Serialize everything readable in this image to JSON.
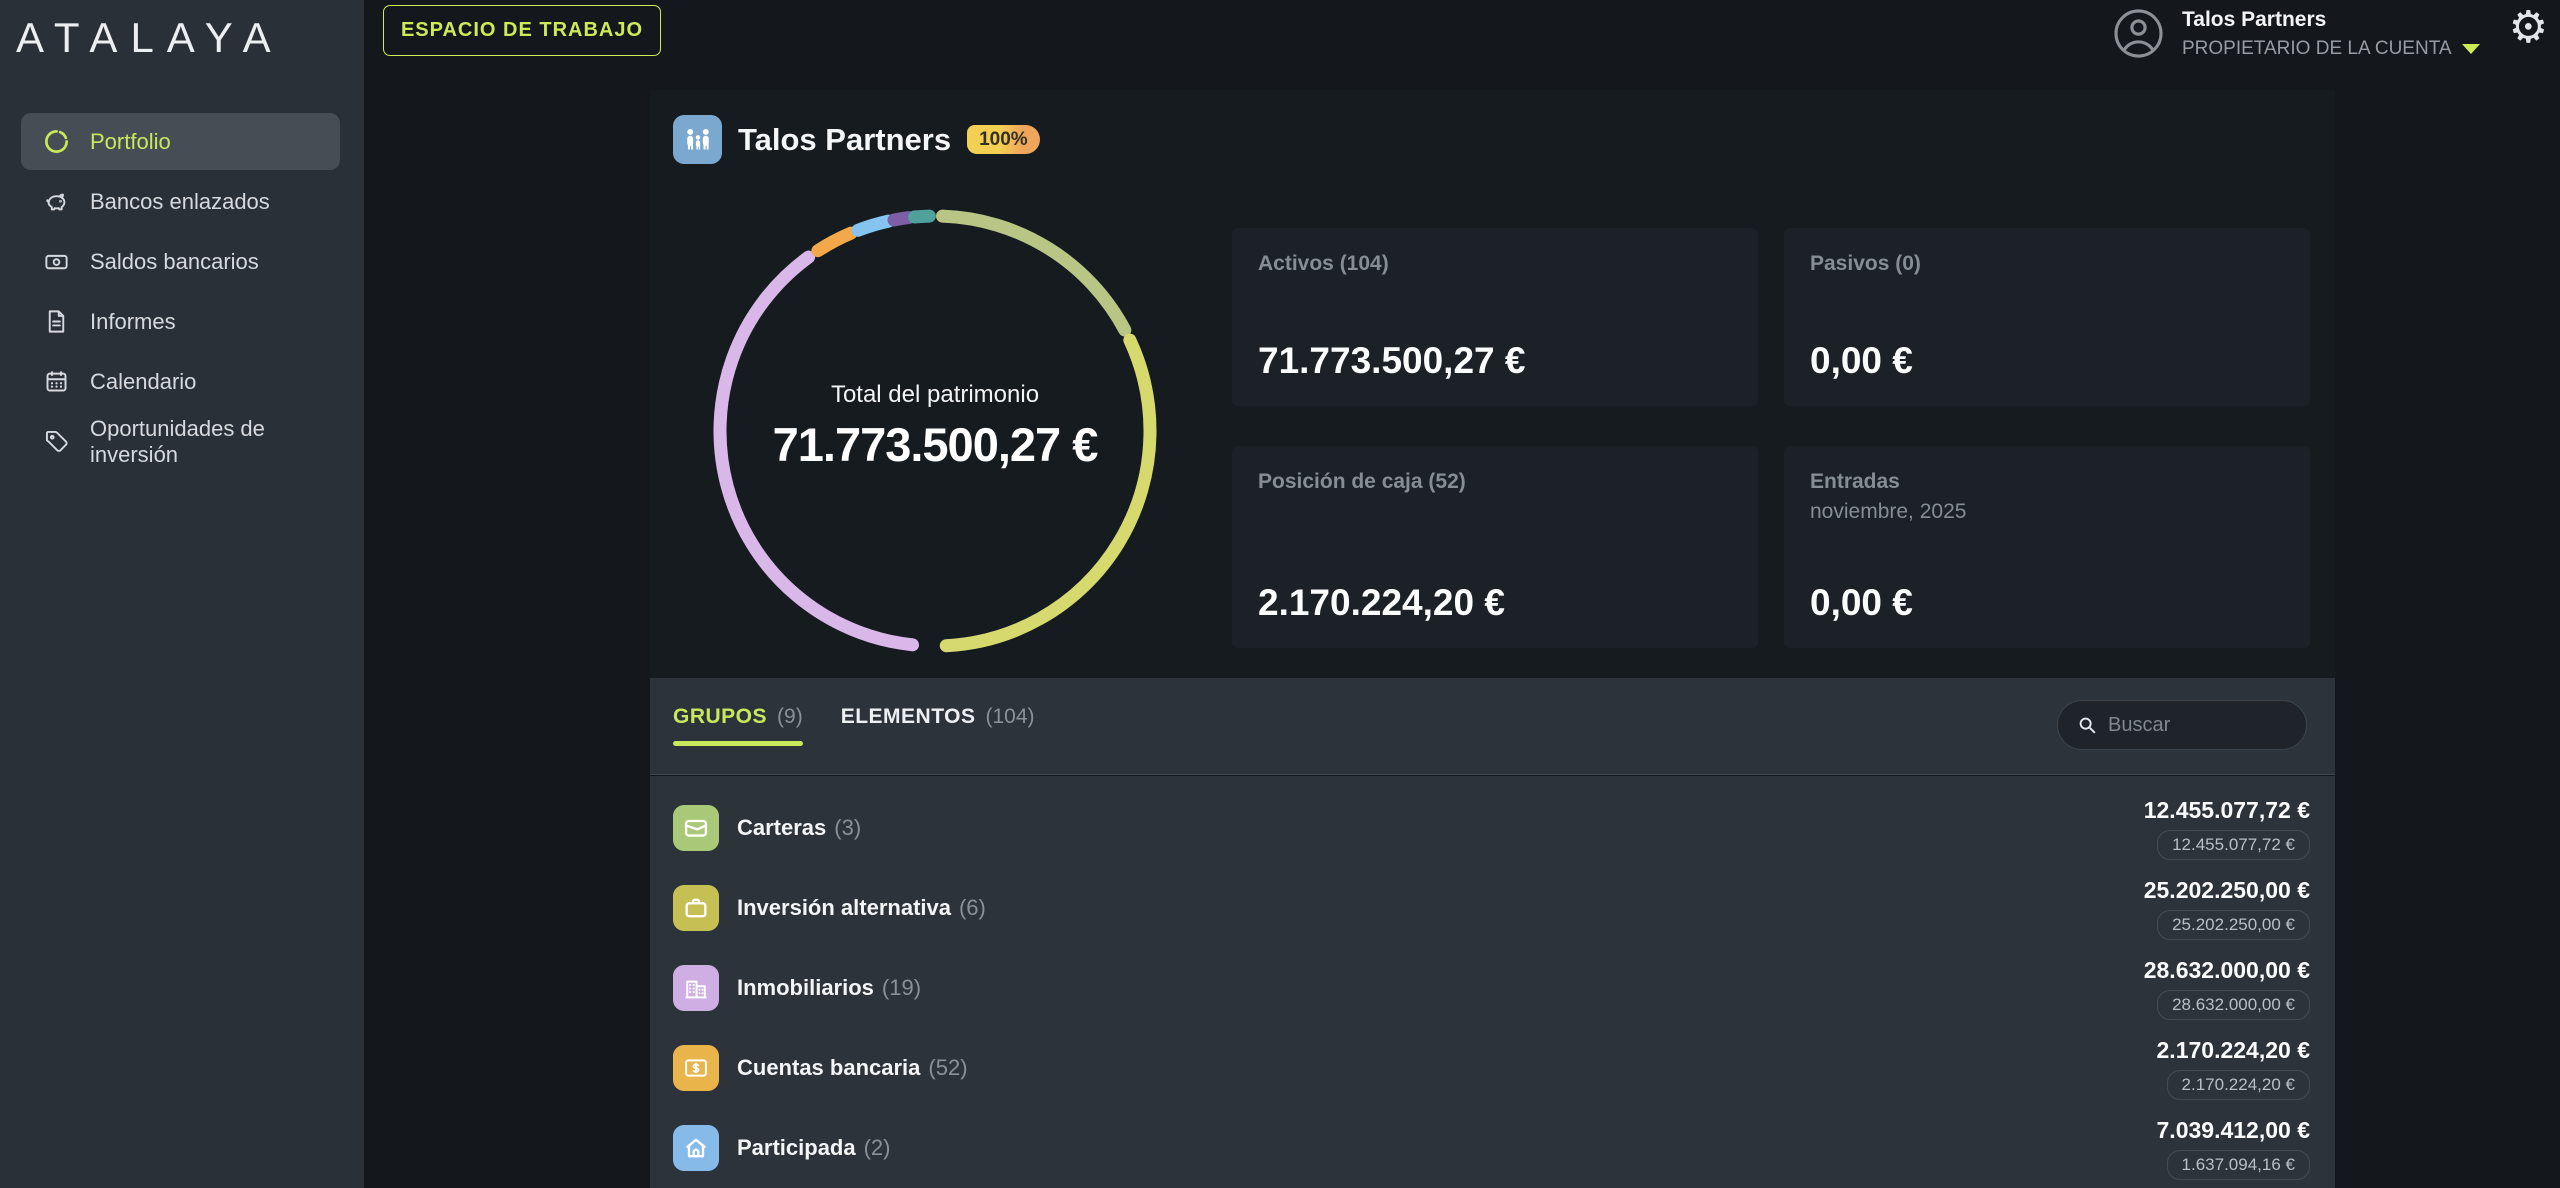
{
  "accent_green": "#c8e95b",
  "sidebar": {
    "logo": "ATALAYA",
    "items": [
      {
        "label": "Portfolio",
        "icon": "donut-chart",
        "active": true
      },
      {
        "label": "Bancos enlazados",
        "icon": "piggy-bank",
        "active": false
      },
      {
        "label": "Saldos bancarios",
        "icon": "banknote",
        "active": false
      },
      {
        "label": "Informes",
        "icon": "document",
        "active": false
      },
      {
        "label": "Calendario",
        "icon": "calendar",
        "active": false
      },
      {
        "label": "Oportunidades de inversión",
        "icon": "tag",
        "active": false
      }
    ]
  },
  "topbar": {
    "workspace_button": "ESPACIO DE TRABAJO",
    "user": {
      "name": "Talos Partners",
      "role": "PROPIETARIO DE LA CUENTA"
    },
    "gear_glyph": "⚙"
  },
  "portfolio": {
    "name": "Talos Partners",
    "icon": "family",
    "icon_color": "#7ba8cf",
    "completeness_badge": "100%",
    "cards": [
      {
        "title": "Activos (104)",
        "subtitle": "",
        "value": "71.773.500,27 €"
      },
      {
        "title": "Pasivos (0)",
        "subtitle": "",
        "value": "0,00 €"
      },
      {
        "title": "Posición de caja (52)",
        "subtitle": "",
        "value": "2.170.224,20 €"
      },
      {
        "title": "Entradas",
        "subtitle": "noviembre, 2025",
        "value": "0,00 €"
      }
    ]
  },
  "chart_data": {
    "type": "pie",
    "style": "donut",
    "center_label": "Total del patrimonio",
    "center_value": "71.773.500,27 €",
    "legend_position": "none",
    "segments": [
      {
        "color": "#b9c584",
        "from_deg": 2,
        "to_deg": 62,
        "approx_pct": 16.7
      },
      {
        "color": "#d6d96e",
        "from_deg": 65,
        "to_deg": 177,
        "approx_pct": 31.1
      },
      {
        "color": "#d9b7e9",
        "from_deg": 186,
        "to_deg": 324,
        "approx_pct": 38.3
      },
      {
        "color": "#f3a94a",
        "from_deg": 327,
        "to_deg": 337,
        "approx_pct": 2.8
      },
      {
        "color": "#85c4f0",
        "from_deg": 339,
        "to_deg": 347.5,
        "approx_pct": 2.4
      },
      {
        "color": "#7d5fa8",
        "from_deg": 349,
        "to_deg": 353,
        "approx_pct": 1.1
      },
      {
        "color": "#50a09b",
        "from_deg": 354.5,
        "to_deg": 358.5,
        "approx_pct": 1.1
      }
    ]
  },
  "tabs": [
    {
      "label": "GRUPOS",
      "count": "(9)",
      "active": true
    },
    {
      "label": "ELEMENTOS",
      "count": "(104)",
      "active": false
    }
  ],
  "search": {
    "placeholder": "Buscar"
  },
  "groups": [
    {
      "label": "Carteras",
      "count": "(3)",
      "icon": "wallet",
      "color": "#a9c878",
      "value": "12.455.077,72 €",
      "sub_value": "12.455.077,72 €"
    },
    {
      "label": "Inversión alternativa",
      "count": "(6)",
      "icon": "briefcase",
      "color": "#c6c054",
      "value": "25.202.250,00 €",
      "sub_value": "25.202.250,00 €"
    },
    {
      "label": "Inmobiliarios",
      "count": "(19)",
      "icon": "buildings",
      "color": "#cfaee3",
      "value": "28.632.000,00 €",
      "sub_value": "28.632.000,00 €"
    },
    {
      "label": "Cuentas bancaria",
      "count": "(52)",
      "icon": "banknote-dollar",
      "color": "#e9b54b",
      "value": "2.170.224,20 €",
      "sub_value": "2.170.224,20 €"
    },
    {
      "label": "Participada",
      "count": "(2)",
      "icon": "home",
      "color": "#86bbe9",
      "value": "7.039.412,00 €",
      "sub_value": "1.637.094,16 €"
    }
  ]
}
